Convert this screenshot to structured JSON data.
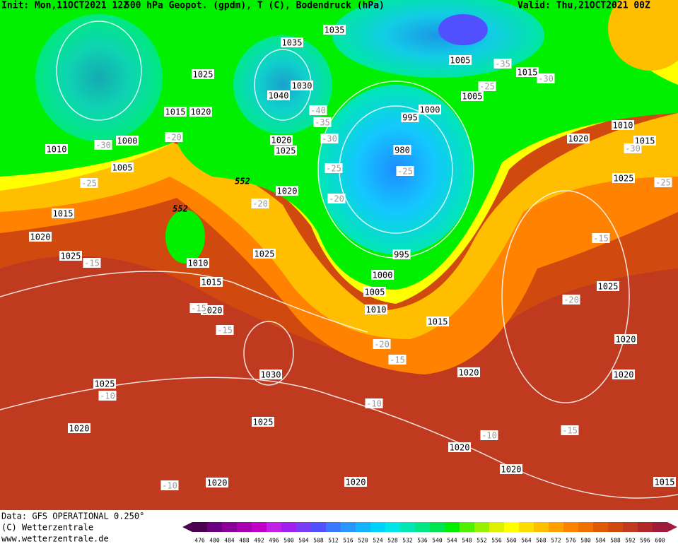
{
  "header": {
    "init": "Init: Mon,11OCT2021 12Z",
    "product": "500 hPa Geopot. (gpdm), T (C), Bodendruck (hPa)",
    "valid": "Valid: Thu,21OCT2021 00Z"
  },
  "footer": {
    "data": "Data: GFS OPERATIONAL 0.250°",
    "copyright": "(C) Wetterzentrale",
    "url": "www.wetterzentrale.de"
  },
  "colorbar": {
    "labels": [
      476,
      480,
      484,
      488,
      492,
      496,
      500,
      504,
      508,
      512,
      516,
      520,
      524,
      528,
      532,
      536,
      540,
      544,
      548,
      552,
      556,
      560,
      564,
      568,
      572,
      576,
      580,
      584,
      588,
      592,
      596,
      600
    ],
    "colors": [
      "#4b0050",
      "#6a0080",
      "#8a0099",
      "#a600b0",
      "#c000c8",
      "#c31fe6",
      "#a020f0",
      "#7a3cf5",
      "#5050ff",
      "#3c78ff",
      "#2896ff",
      "#14b4ff",
      "#00d2ff",
      "#00e6e6",
      "#00e6b4",
      "#00e682",
      "#00e650",
      "#00f000",
      "#50f000",
      "#96f000",
      "#dcf000",
      "#ffff00",
      "#ffdc00",
      "#ffbe00",
      "#ffa000",
      "#ff8200",
      "#f07000",
      "#e05a00",
      "#d04a10",
      "#c03a20",
      "#b02828",
      "#a01c3c"
    ]
  },
  "map": {
    "contour_label": "552",
    "pressure_labels": [
      "1035",
      "1035",
      "1025",
      "1030",
      "1040",
      "1015",
      "1020",
      "1020",
      "1025",
      "1000",
      "1010",
      "1005",
      "1020",
      "1015",
      "1020",
      "1025",
      "1025",
      "1010",
      "1015",
      "1020",
      "1000",
      "995",
      "980",
      "1005",
      "1010",
      "1015",
      "1000",
      "995",
      "1005",
      "1005",
      "1015",
      "1010",
      "1015",
      "1020",
      "1025",
      "1025",
      "1020",
      "1020",
      "1020",
      "1020",
      "1020",
      "1020",
      "1020",
      "1030",
      "1025",
      "1020",
      "1025",
      "1015"
    ],
    "temperature_labels": [
      "-30",
      "-20",
      "-25",
      "-40",
      "-35",
      "-30",
      "-25",
      "-20",
      "-20",
      "-25",
      "-15",
      "-15",
      "-15",
      "-20",
      "-15",
      "-10",
      "-10",
      "-10",
      "-15",
      "-10",
      "-20",
      "-15",
      "-35",
      "-25",
      "-30",
      "-30",
      "-25"
    ]
  }
}
